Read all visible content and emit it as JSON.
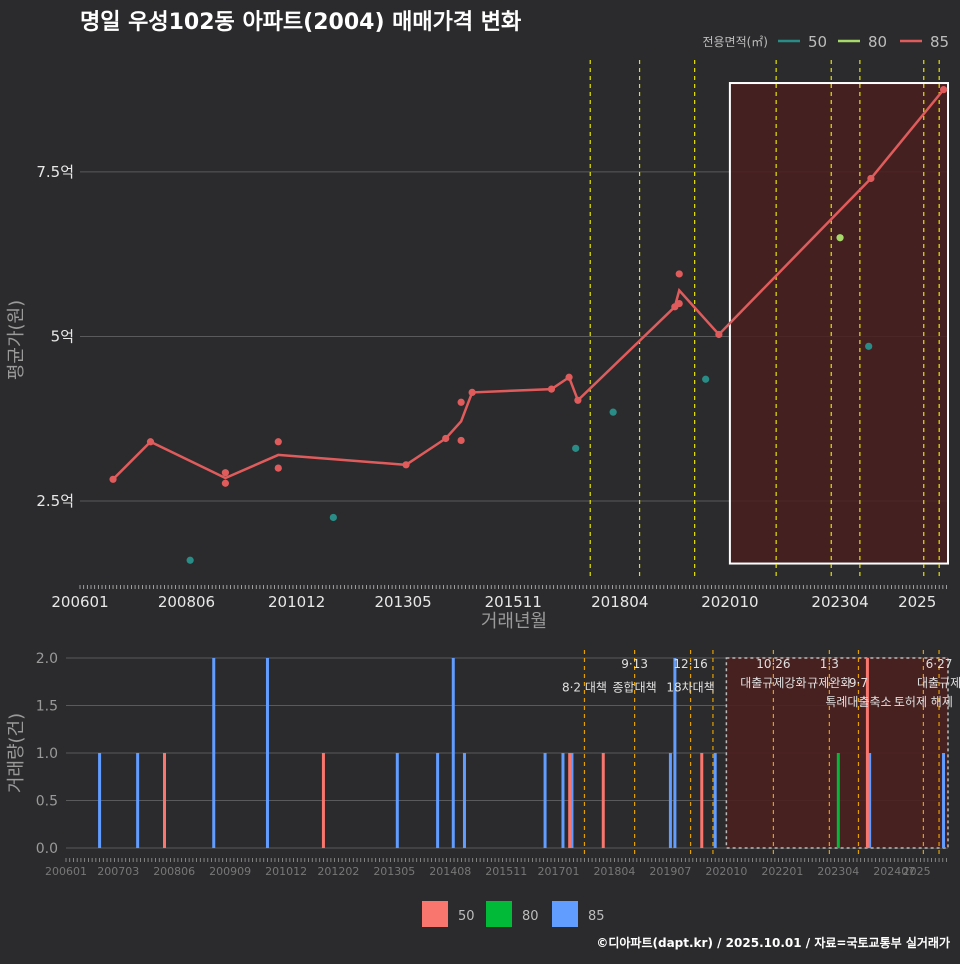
{
  "title": "명일 우성102동 아파트(2004) 매매가격 변화",
  "credit": "©디아파트(dapt.kr) / 2025.10.01 / 자료=국토교통부 실거래가",
  "colors": {
    "background": "#2b2b2d",
    "grid": "#5a5a5c",
    "s50_top": "#2a8c86",
    "s80_top": "#a6d96a",
    "s85_top": "#e05c5c",
    "s50_bar": "#f8766d",
    "s80_bar": "#00ba38",
    "s85_bar": "#619cff",
    "policy_line": "#e5e500",
    "policy_line_bottom": "#e69f00",
    "highlight_fill": "#4a1f1f",
    "highlight_border": "#ffffff"
  },
  "chart_data": [
    {
      "type": "line",
      "name": "price",
      "ylabel": "평균가(원)",
      "xlabel": "거래년월",
      "x_ticks": [
        "200601",
        "200806",
        "201012",
        "201305",
        "201511",
        "201804",
        "202010",
        "202304",
        "2025"
      ],
      "y_ticks": [
        "2.5억",
        "5억",
        "7.5억"
      ],
      "y_tick_values": [
        2.5,
        5,
        7.5
      ],
      "ylim": [
        1.3,
        9.2
      ],
      "xlim": [
        2006.0,
        2025.7
      ],
      "legend_title": "전용면적(㎡)",
      "legend": [
        "50",
        "80",
        "85"
      ],
      "series": [
        {
          "name": "50",
          "kind": "points",
          "points": [
            [
              2008.5,
              1.6
            ],
            [
              2011.75,
              2.25
            ],
            [
              2017.25,
              3.3
            ],
            [
              2018.1,
              3.85
            ],
            [
              2020.2,
              4.35
            ],
            [
              2023.9,
              4.85
            ]
          ]
        },
        {
          "name": "80",
          "kind": "points",
          "points": [
            [
              2023.25,
              6.5
            ]
          ]
        },
        {
          "name": "85",
          "kind": "points",
          "points": [
            [
              2006.75,
              2.83
            ],
            [
              2007.6,
              3.4
            ],
            [
              2009.3,
              2.93
            ],
            [
              2009.3,
              2.77
            ],
            [
              2010.5,
              3.4
            ],
            [
              2010.5,
              3.0
            ],
            [
              2013.4,
              3.05
            ],
            [
              2014.3,
              3.45
            ],
            [
              2014.65,
              4.0
            ],
            [
              2014.65,
              3.42
            ],
            [
              2014.9,
              4.15
            ],
            [
              2016.7,
              4.2
            ],
            [
              2017.1,
              4.38
            ],
            [
              2017.3,
              4.03
            ],
            [
              2019.5,
              5.45
            ],
            [
              2019.6,
              5.95
            ],
            [
              2019.6,
              5.5
            ],
            [
              2020.5,
              5.03
            ],
            [
              2023.95,
              7.4
            ],
            [
              2025.6,
              8.75
            ]
          ]
        },
        {
          "name": "85",
          "kind": "line",
          "points": [
            [
              2006.75,
              2.83
            ],
            [
              2007.6,
              3.4
            ],
            [
              2009.3,
              2.85
            ],
            [
              2010.5,
              3.2
            ],
            [
              2013.4,
              3.05
            ],
            [
              2014.3,
              3.45
            ],
            [
              2014.65,
              3.71
            ],
            [
              2014.9,
              4.15
            ],
            [
              2016.7,
              4.2
            ],
            [
              2017.1,
              4.38
            ],
            [
              2017.3,
              4.03
            ],
            [
              2019.5,
              5.45
            ],
            [
              2019.6,
              5.7
            ],
            [
              2020.5,
              5.03
            ],
            [
              2023.95,
              7.4
            ],
            [
              2025.6,
              8.75
            ]
          ]
        }
      ],
      "policy_lines": [
        2017.58,
        2018.7,
        2019.95,
        2021.8,
        2023.05,
        2023.7,
        2025.15,
        2025.5
      ],
      "highlight_range": [
        2020.75,
        2025.7
      ]
    },
    {
      "type": "bar",
      "name": "volume",
      "ylabel": "거래량(건)",
      "x_ticks": [
        "200601",
        "200703",
        "200806",
        "200909",
        "201012",
        "201202",
        "201305",
        "201408",
        "201511",
        "201701",
        "201804",
        "201907",
        "202010",
        "202201",
        "202304",
        "202407",
        "2025"
      ],
      "y_ticks": [
        "0.0",
        "0.5",
        "1.0",
        "1.5",
        "2.0"
      ],
      "y_tick_values": [
        0,
        0.5,
        1.0,
        1.5,
        2.0
      ],
      "ylim": [
        0,
        2.0
      ],
      "xlim": [
        2006.0,
        2025.7
      ],
      "legend": [
        "50",
        "80",
        "85"
      ],
      "series": [
        {
          "name": "85",
          "bars": [
            [
              2006.75,
              1
            ],
            [
              2007.6,
              1
            ],
            [
              2009.3,
              2
            ],
            [
              2010.5,
              2
            ],
            [
              2013.4,
              1
            ],
            [
              2014.3,
              1
            ],
            [
              2014.65,
              2
            ],
            [
              2014.9,
              1
            ],
            [
              2016.7,
              1
            ],
            [
              2017.1,
              1
            ],
            [
              2017.3,
              1
            ],
            [
              2019.5,
              1
            ],
            [
              2019.6,
              2
            ],
            [
              2020.5,
              1
            ],
            [
              2023.95,
              1
            ],
            [
              2025.6,
              1
            ]
          ]
        },
        {
          "name": "50",
          "bars": [
            [
              2008.2,
              1
            ],
            [
              2011.75,
              1
            ],
            [
              2017.25,
              1
            ],
            [
              2018.0,
              1
            ],
            [
              2020.2,
              1
            ],
            [
              2023.9,
              2
            ]
          ]
        },
        {
          "name": "80",
          "bars": [
            [
              2023.25,
              1
            ]
          ]
        }
      ],
      "policy_lines": [
        2017.58,
        2018.7,
        2019.95,
        2020.45,
        2021.8,
        2023.05,
        2023.7,
        2025.15,
        2025.5
      ],
      "annotations": [
        {
          "x": 2017.58,
          "y": 1.7,
          "text": "8·2 대책"
        },
        {
          "x": 2018.7,
          "y": 1.95,
          "text": "9·13"
        },
        {
          "x": 2018.7,
          "y": 1.7,
          "text": "종합대책"
        },
        {
          "x": 2019.95,
          "y": 1.95,
          "text": "12·16"
        },
        {
          "x": 2019.95,
          "y": 1.7,
          "text": "18차대책"
        },
        {
          "x": 2021.8,
          "y": 1.95,
          "text": "10·26"
        },
        {
          "x": 2021.8,
          "y": 1.75,
          "text": "대출규제강화"
        },
        {
          "x": 2023.05,
          "y": 1.95,
          "text": "1·3"
        },
        {
          "x": 2023.05,
          "y": 1.75,
          "text": "규제완화"
        },
        {
          "x": 2023.7,
          "y": 1.75,
          "text": "9·7"
        },
        {
          "x": 2023.7,
          "y": 1.55,
          "text": "특례대출축소"
        },
        {
          "x": 2025.5,
          "y": 1.95,
          "text": "6·27"
        },
        {
          "x": 2025.5,
          "y": 1.75,
          "text": "대출규제"
        },
        {
          "x": 2025.15,
          "y": 1.55,
          "text": "토허제 해제"
        }
      ],
      "highlight_range": [
        2020.75,
        2025.7
      ]
    }
  ]
}
